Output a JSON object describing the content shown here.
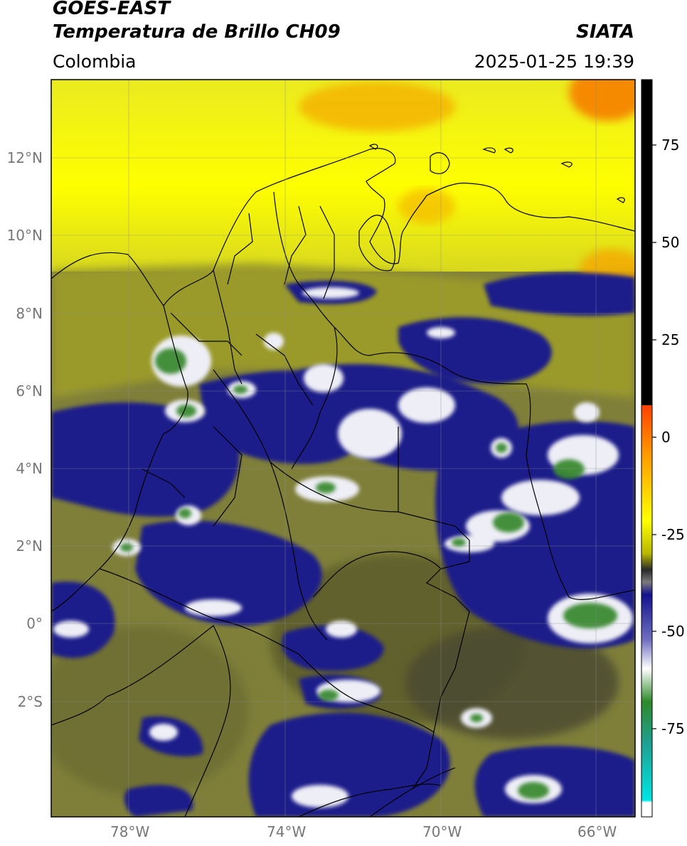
{
  "header": {
    "satellite": "GOES-EAST",
    "product": "Temperatura de Brillo CH09",
    "region": "Colombia",
    "institution": "SIATA",
    "datetime": "2025-01-25 19:39"
  },
  "map": {
    "lat_range": [
      -5.1,
      14.0
    ],
    "lon_range": [
      -80.0,
      -65.0
    ],
    "lat_ticks": [
      {
        "value": 12,
        "label": "12°N"
      },
      {
        "value": 10,
        "label": "10°N"
      },
      {
        "value": 8,
        "label": "8°N"
      },
      {
        "value": 6,
        "label": "6°N"
      },
      {
        "value": 4,
        "label": "4°N"
      },
      {
        "value": 2,
        "label": "2°N"
      },
      {
        "value": 0,
        "label": "0°"
      },
      {
        "value": -2,
        "label": "2°S"
      }
    ],
    "lon_ticks": [
      {
        "value": -78,
        "label": "78°W"
      },
      {
        "value": -74,
        "label": "74°W"
      },
      {
        "value": -70,
        "label": "70°W"
      },
      {
        "value": -66,
        "label": "66°W"
      }
    ],
    "colors": {
      "warm_north": "#f2f000",
      "warm_orange": "#f5a000",
      "olive": "#8a8a30",
      "dark_olive": "#55552a",
      "cloud_blue": "#1c1c8a",
      "cloud_white": "#f4f4f8",
      "cloud_green": "#3a8a30"
    }
  },
  "colorbar": {
    "range": [
      -100,
      90
    ],
    "ticks": [
      {
        "value": 75,
        "label": "75"
      },
      {
        "value": 50,
        "label": "50"
      },
      {
        "value": 25,
        "label": "25"
      },
      {
        "value": 0,
        "label": "0"
      },
      {
        "value": -25,
        "label": "-25"
      },
      {
        "value": -50,
        "label": "-50"
      },
      {
        "value": -75,
        "label": "-75"
      }
    ]
  }
}
